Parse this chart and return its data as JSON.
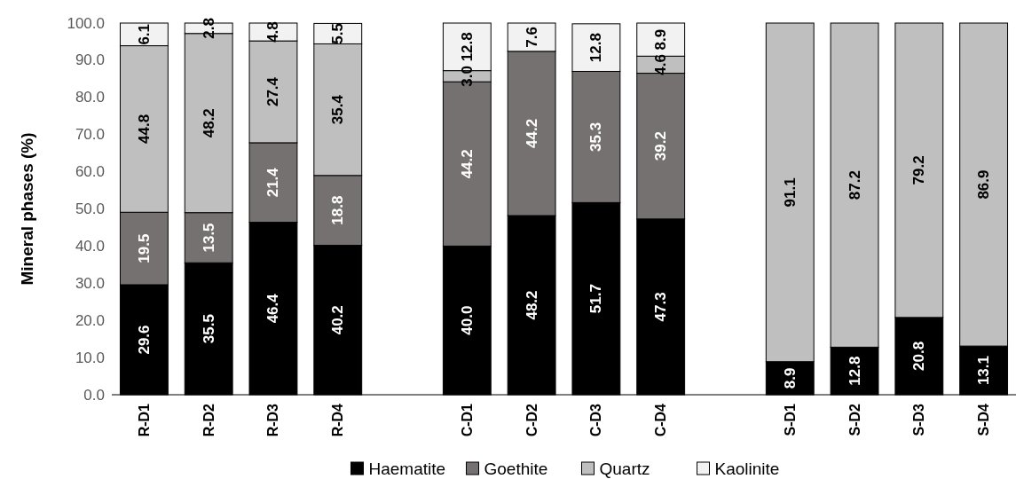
{
  "chart_data": {
    "type": "bar",
    "stacked": true,
    "ylabel": "Mineral phases (%)",
    "categories": [
      "R-D1",
      "R-D2",
      "R-D3",
      "R-D4",
      null,
      "C-D1",
      "C-D2",
      "C-D3",
      "C-D4",
      null,
      "S-D1",
      "S-D2",
      "S-D3",
      "S-D4"
    ],
    "ylim": [
      0,
      100
    ],
    "yticks": [
      {
        "value": 0,
        "label": "0.0"
      },
      {
        "value": 10,
        "label": "10.0"
      },
      {
        "value": 20,
        "label": "20.0"
      },
      {
        "value": 30,
        "label": "30.0"
      },
      {
        "value": 40,
        "label": "40.0"
      },
      {
        "value": 50,
        "label": "50.0"
      },
      {
        "value": 60,
        "label": "60.0"
      },
      {
        "value": 70,
        "label": "70.0"
      },
      {
        "value": 80,
        "label": "80.0"
      },
      {
        "value": 90,
        "label": "90.0"
      },
      {
        "value": 100,
        "label": "100.0"
      }
    ],
    "grid": false,
    "legend": "bottom",
    "series": [
      {
        "name": "Haematite",
        "color": "#000000",
        "values": [
          29.6,
          35.5,
          46.4,
          40.2,
          null,
          40.0,
          48.2,
          51.7,
          47.3,
          null,
          8.9,
          12.8,
          20.8,
          13.1
        ],
        "value_labels": [
          "29.6",
          "35.5",
          "46.4",
          "40.2",
          null,
          "40.0",
          "48.2",
          "51.7",
          "47.3",
          null,
          "8.9",
          "12.8",
          "20.8",
          "13.1"
        ]
      },
      {
        "name": "Goethite",
        "color": "#767171",
        "values": [
          19.5,
          13.5,
          21.4,
          18.8,
          null,
          44.2,
          44.2,
          35.3,
          39.2,
          null,
          0,
          0,
          0,
          0
        ],
        "value_labels": [
          "19.5",
          "13.5",
          "21.4",
          "18.8",
          null,
          "44.2",
          "44.2",
          "35.3",
          "39.2",
          null,
          null,
          null,
          null,
          null
        ]
      },
      {
        "name": "Quartz",
        "color": "#bfbfbf",
        "values": [
          44.8,
          48.2,
          27.4,
          35.4,
          null,
          3.0,
          0,
          0,
          4.6,
          null,
          91.1,
          87.2,
          79.2,
          86.9
        ],
        "value_labels": [
          "44.8",
          "48.2",
          "27.4",
          "35.4",
          null,
          "3.0",
          null,
          null,
          "4.6",
          null,
          "91.1",
          "87.2",
          "79.2",
          "86.9"
        ]
      },
      {
        "name": "Kaolinite",
        "color": "#f2f2f2",
        "values": [
          6.1,
          2.8,
          4.8,
          5.5,
          null,
          12.8,
          7.6,
          12.8,
          8.9,
          null,
          0,
          0,
          0,
          0
        ],
        "value_labels": [
          "6.1",
          "2.8",
          "4.8",
          "5.5",
          null,
          "12.8",
          "7.6",
          "12.8",
          "8.9",
          null,
          null,
          null,
          null,
          null
        ]
      }
    ]
  }
}
